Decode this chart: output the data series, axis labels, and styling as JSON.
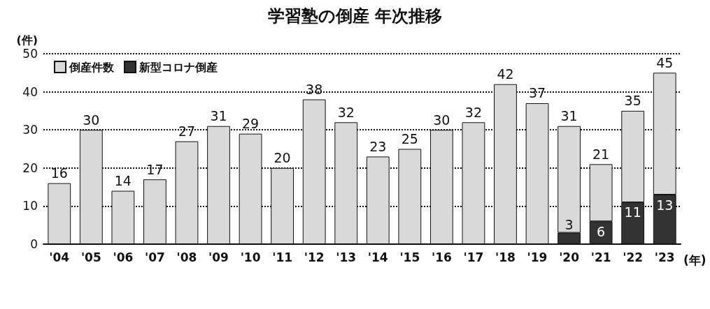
{
  "chart_data": {
    "type": "bar",
    "title": "学習塾の倒産 年次推移",
    "ylabel": "(件)",
    "xlabel": "(年)",
    "categories": [
      "'04",
      "'05",
      "'06",
      "'07",
      "'08",
      "'09",
      "'10",
      "'11",
      "'12",
      "'13",
      "'14",
      "'15",
      "'16",
      "'17",
      "'18",
      "'19",
      "'20",
      "'21",
      "'22",
      "'23"
    ],
    "stacked": true,
    "series": [
      {
        "name": "新型コロナ倒産",
        "color": "#333333",
        "values": [
          null,
          null,
          null,
          null,
          null,
          null,
          null,
          null,
          null,
          null,
          null,
          null,
          null,
          null,
          null,
          null,
          3,
          6,
          11,
          13
        ],
        "value_labels": [
          null,
          null,
          null,
          null,
          null,
          null,
          null,
          null,
          null,
          null,
          null,
          null,
          null,
          null,
          null,
          null,
          "3",
          "6",
          "11",
          "13"
        ]
      },
      {
        "name": "倒産件数",
        "color": "#d9d9d9",
        "values": [
          16,
          30,
          14,
          17,
          27,
          31,
          29,
          20,
          38,
          32,
          23,
          25,
          30,
          32,
          42,
          37,
          28,
          15,
          24,
          32
        ]
      }
    ],
    "totals": [
      "16",
      "30",
      "14",
      "17",
      "27",
      "31",
      "29",
      "20",
      "38",
      "32",
      "23",
      "25",
      "30",
      "32",
      "42",
      "37",
      "31",
      "21",
      "35",
      "45"
    ],
    "ylim": [
      0,
      50
    ],
    "yticks": [
      0,
      10,
      20,
      30,
      40,
      50
    ],
    "grid": "y",
    "legend": "top left"
  }
}
